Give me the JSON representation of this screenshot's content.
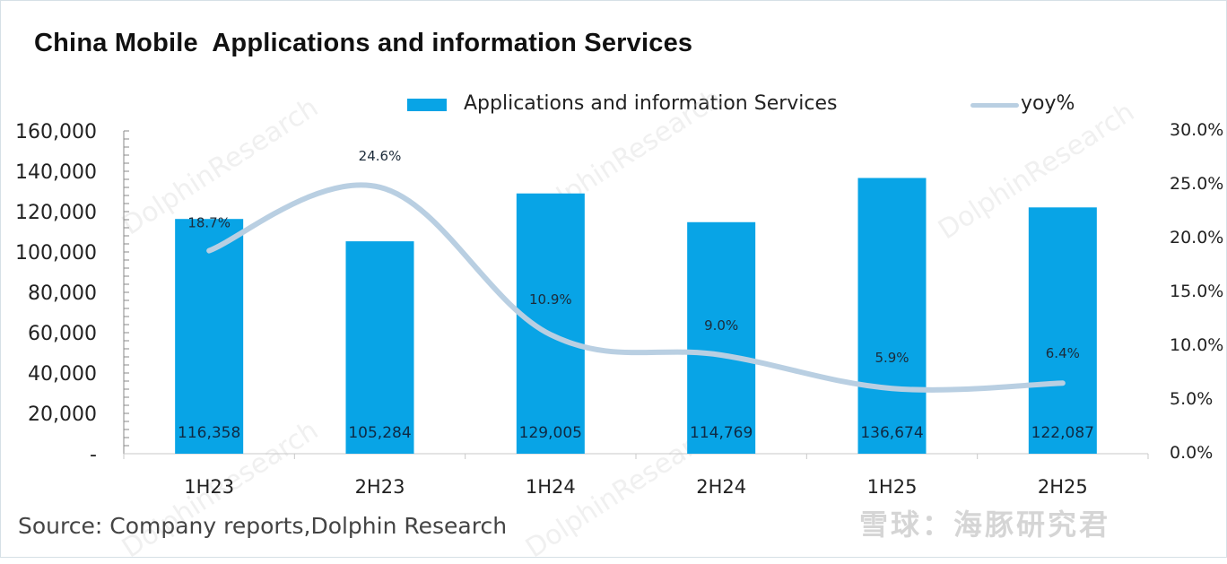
{
  "chart_data": {
    "type": "bar",
    "title": "China Mobile  Applications and information Services",
    "categories": [
      "1H23",
      "2H23",
      "1H24",
      "2H24",
      "1H25",
      "2H25"
    ],
    "series": [
      {
        "name": "Applications and information Services",
        "type": "bar",
        "axis": "left",
        "color": "#08a4e6",
        "values": [
          116358,
          105284,
          129005,
          114769,
          136674,
          122087
        ],
        "labels": [
          "116,358",
          "105,284",
          "129,005",
          "114,769",
          "136,674",
          "122,087"
        ]
      },
      {
        "name": "yoy%",
        "type": "line",
        "axis": "right",
        "color": "#b9cfe2",
        "values": [
          18.7,
          24.6,
          10.9,
          9.0,
          5.9,
          6.4
        ],
        "labels": [
          "18.7%",
          "24.6%",
          "10.9%",
          "9.0%",
          "5.9%",
          "6.4%"
        ]
      }
    ],
    "y_left": {
      "range": [
        0,
        160000
      ],
      "ticks": [
        0,
        20000,
        40000,
        60000,
        80000,
        100000,
        120000,
        140000,
        160000
      ],
      "tick_labels": [
        "-",
        "20,000",
        "40,000",
        "60,000",
        "80,000",
        "100,000",
        "120,000",
        "140,000",
        "160,000"
      ]
    },
    "y_right": {
      "range": [
        0,
        30
      ],
      "ticks": [
        0,
        5,
        10,
        15,
        20,
        25,
        30
      ],
      "tick_labels": [
        "0.0%",
        "5.0%",
        "10.0%",
        "15.0%",
        "20.0%",
        "25.0%",
        "30.0%"
      ]
    },
    "xlabel": "",
    "ylabel": "",
    "grid": false,
    "legend": "top-center"
  },
  "legend": {
    "bar_label": "Applications and information Services",
    "line_label": "yoy%"
  },
  "source": "Source: Company reports,Dolphin Research",
  "watermark": {
    "text": "DolphinResearch",
    "logo_text": "雪球：海豚研究君"
  }
}
